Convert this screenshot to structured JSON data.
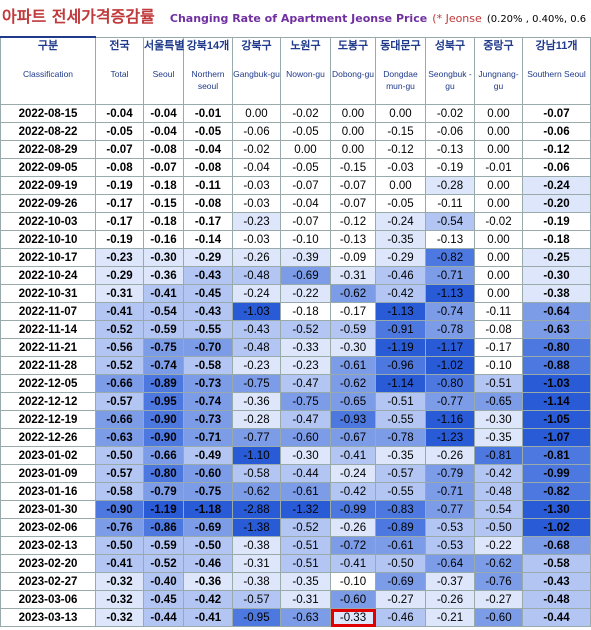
{
  "header": {
    "korean_title": "아파트 전세가격증감률",
    "english_title": "Changing Rate of Apartment Jeonse Price",
    "note": "(* Jeonse",
    "scale": "(0.20% , 0.40%, 0.6"
  },
  "table": {
    "columns": [
      {
        "korean": "구분",
        "english": "Classification"
      },
      {
        "korean": "전국",
        "english": "Total"
      },
      {
        "korean": "서울특별",
        "english": "Seoul"
      },
      {
        "korean": "강북14개",
        "english": "Northern seoul"
      },
      {
        "korean": "강북구",
        "english": "Gangbuk-gu"
      },
      {
        "korean": "노원구",
        "english": "Nowon-gu"
      },
      {
        "korean": "도봉구",
        "english": "Dobong-gu"
      },
      {
        "korean": "동대문구",
        "english": "Dongdae mun-gu"
      },
      {
        "korean": "성북구",
        "english": "Seongbuk -gu"
      },
      {
        "korean": "중랑구",
        "english": "Jungnang-gu"
      },
      {
        "korean": "강남11개",
        "english": "Southern Seoul"
      }
    ],
    "rows": [
      {
        "date": "2022-08-15",
        "values": [
          "-0.04",
          "-0.04",
          "-0.01",
          "0.00",
          "-0.02",
          "0.00",
          "0.00",
          "-0.02",
          "0.00",
          "-0.07"
        ]
      },
      {
        "date": "2022-08-22",
        "values": [
          "-0.05",
          "-0.04",
          "-0.05",
          "-0.06",
          "-0.05",
          "0.00",
          "-0.15",
          "-0.06",
          "0.00",
          "-0.06"
        ]
      },
      {
        "date": "2022-08-29",
        "values": [
          "-0.07",
          "-0.08",
          "-0.04",
          "-0.02",
          "0.00",
          "0.00",
          "-0.12",
          "-0.13",
          "0.00",
          "-0.12"
        ]
      },
      {
        "date": "2022-09-05",
        "values": [
          "-0.08",
          "-0.07",
          "-0.08",
          "-0.04",
          "-0.05",
          "-0.15",
          "-0.03",
          "-0.19",
          "-0.01",
          "-0.06"
        ]
      },
      {
        "date": "2022-09-19",
        "values": [
          "-0.19",
          "-0.18",
          "-0.11",
          "-0.03",
          "-0.07",
          "-0.07",
          "0.00",
          "-0.28",
          "0.00",
          "-0.24"
        ]
      },
      {
        "date": "2022-09-26",
        "values": [
          "-0.17",
          "-0.15",
          "-0.08",
          "-0.03",
          "-0.04",
          "-0.07",
          "-0.05",
          "-0.11",
          "0.00",
          "-0.20"
        ]
      },
      {
        "date": "2022-10-03",
        "values": [
          "-0.17",
          "-0.18",
          "-0.17",
          "-0.23",
          "-0.07",
          "-0.12",
          "-0.24",
          "-0.54",
          "-0.02",
          "-0.19"
        ]
      },
      {
        "date": "2022-10-10",
        "values": [
          "-0.19",
          "-0.16",
          "-0.14",
          "-0.03",
          "-0.10",
          "-0.13",
          "-0.35",
          "-0.13",
          "0.00",
          "-0.18"
        ]
      },
      {
        "date": "2022-10-17",
        "values": [
          "-0.23",
          "-0.30",
          "-0.29",
          "-0.26",
          "-0.39",
          "-0.09",
          "-0.29",
          "-0.82",
          "0.00",
          "-0.25"
        ]
      },
      {
        "date": "2022-10-24",
        "values": [
          "-0.29",
          "-0.36",
          "-0.43",
          "-0.48",
          "-0.69",
          "-0.31",
          "-0.46",
          "-0.71",
          "0.00",
          "-0.30"
        ]
      },
      {
        "date": "2022-10-31",
        "values": [
          "-0.31",
          "-0.41",
          "-0.45",
          "-0.24",
          "-0.22",
          "-0.62",
          "-0.42",
          "-1.13",
          "0.00",
          "-0.38"
        ]
      },
      {
        "date": "2022-11-07",
        "values": [
          "-0.41",
          "-0.54",
          "-0.43",
          "-1.03",
          "-0.18",
          "-0.17",
          "-1.13",
          "-0.74",
          "-0.11",
          "-0.64"
        ]
      },
      {
        "date": "2022-11-14",
        "values": [
          "-0.52",
          "-0.59",
          "-0.55",
          "-0.43",
          "-0.52",
          "-0.59",
          "-0.91",
          "-0.78",
          "-0.08",
          "-0.63"
        ]
      },
      {
        "date": "2022-11-21",
        "values": [
          "-0.56",
          "-0.75",
          "-0.70",
          "-0.48",
          "-0.33",
          "-0.30",
          "-1.19",
          "-1.17",
          "-0.17",
          "-0.80"
        ]
      },
      {
        "date": "2022-11-28",
        "values": [
          "-0.52",
          "-0.74",
          "-0.58",
          "-0.23",
          "-0.23",
          "-0.61",
          "-0.96",
          "-1.02",
          "-0.10",
          "-0.88"
        ]
      },
      {
        "date": "2022-12-05",
        "values": [
          "-0.66",
          "-0.89",
          "-0.73",
          "-0.75",
          "-0.47",
          "-0.62",
          "-1.14",
          "-0.80",
          "-0.51",
          "-1.03"
        ]
      },
      {
        "date": "2022-12-12",
        "values": [
          "-0.57",
          "-0.95",
          "-0.74",
          "-0.36",
          "-0.75",
          "-0.65",
          "-0.51",
          "-0.77",
          "-0.65",
          "-1.14"
        ]
      },
      {
        "date": "2022-12-19",
        "values": [
          "-0.66",
          "-0.90",
          "-0.73",
          "-0.28",
          "-0.47",
          "-0.93",
          "-0.55",
          "-1.16",
          "-0.30",
          "-1.05"
        ]
      },
      {
        "date": "2022-12-26",
        "values": [
          "-0.63",
          "-0.90",
          "-0.71",
          "-0.77",
          "-0.60",
          "-0.67",
          "-0.78",
          "-1.23",
          "-0.35",
          "-1.07"
        ]
      },
      {
        "date": "2023-01-02",
        "values": [
          "-0.50",
          "-0.66",
          "-0.49",
          "-1.10",
          "-0.30",
          "-0.41",
          "-0.35",
          "-0.26",
          "-0.81",
          "-0.81"
        ]
      },
      {
        "date": "2023-01-09",
        "values": [
          "-0.57",
          "-0.80",
          "-0.60",
          "-0.58",
          "-0.44",
          "-0.24",
          "-0.57",
          "-0.79",
          "-0.42",
          "-0.99"
        ]
      },
      {
        "date": "2023-01-16",
        "values": [
          "-0.58",
          "-0.79",
          "-0.75",
          "-0.62",
          "-0.61",
          "-0.42",
          "-0.55",
          "-0.71",
          "-0.48",
          "-0.82"
        ]
      },
      {
        "date": "2023-01-30",
        "values": [
          "-0.90",
          "-1.19",
          "-1.18",
          "-2.88",
          "-1.32",
          "-0.99",
          "-0.83",
          "-0.77",
          "-0.54",
          "-1.30"
        ]
      },
      {
        "date": "2023-02-06",
        "values": [
          "-0.76",
          "-0.86",
          "-0.69",
          "-1.38",
          "-0.52",
          "-0.26",
          "-0.89",
          "-0.53",
          "-0.50",
          "-1.02"
        ]
      },
      {
        "date": "2023-02-13",
        "values": [
          "-0.50",
          "-0.59",
          "-0.50",
          "-0.38",
          "-0.51",
          "-0.72",
          "-0.61",
          "-0.53",
          "-0.22",
          "-0.68"
        ]
      },
      {
        "date": "2023-02-20",
        "values": [
          "-0.41",
          "-0.52",
          "-0.46",
          "-0.31",
          "-0.51",
          "-0.41",
          "-0.50",
          "-0.64",
          "-0.62",
          "-0.58"
        ]
      },
      {
        "date": "2023-02-27",
        "values": [
          "-0.32",
          "-0.40",
          "-0.36",
          "-0.38",
          "-0.35",
          "-0.10",
          "-0.69",
          "-0.37",
          "-0.76",
          "-0.43"
        ]
      },
      {
        "date": "2023-03-06",
        "values": [
          "-0.32",
          "-0.45",
          "-0.42",
          "-0.57",
          "-0.31",
          "-0.60",
          "-0.27",
          "-0.26",
          "-0.27",
          "-0.48"
        ]
      },
      {
        "date": "2023-03-13",
        "values": [
          "-0.32",
          "-0.44",
          "-0.41",
          "-0.95",
          "-0.63",
          "-0.33",
          "-0.46",
          "-0.21",
          "-0.60",
          "-0.44"
        ]
      }
    ]
  }
}
